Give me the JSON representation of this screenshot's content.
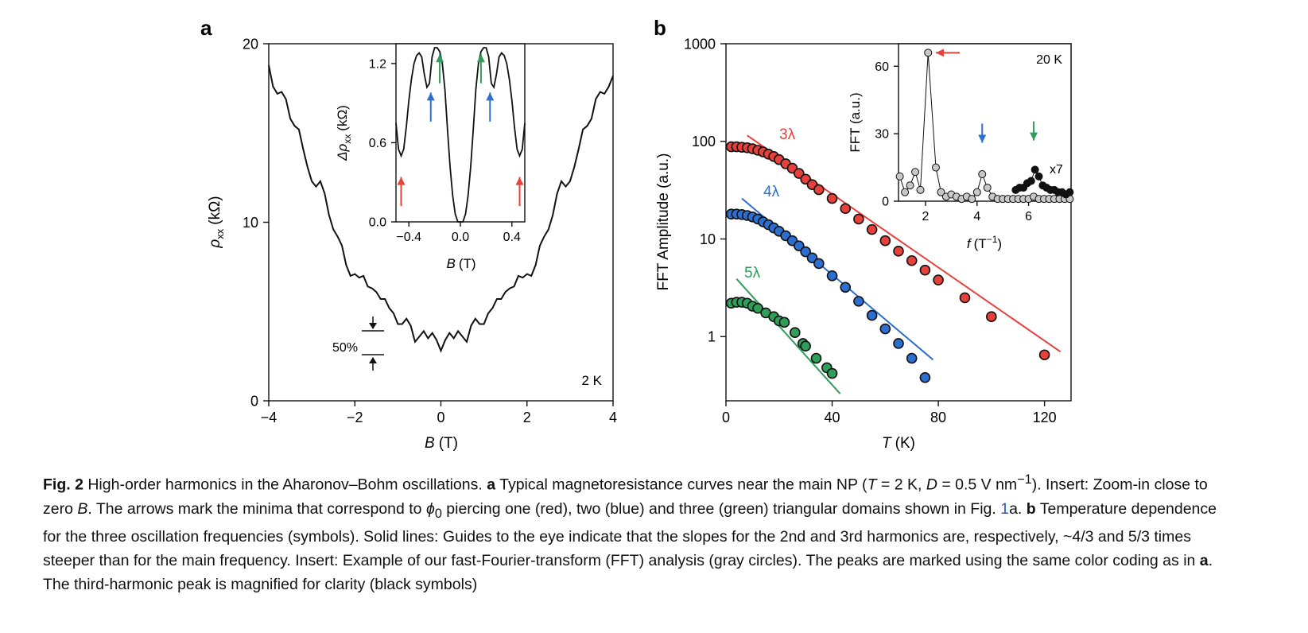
{
  "figure": {
    "panel_a_letter": "a",
    "panel_b_letter": "b"
  },
  "caption": {
    "fig_label": "Fig. 2",
    "s1": " High-order harmonics in the Aharonov–Bohm oscillations. ",
    "s2": "a",
    "s3": " Typical magnetoresistance curves near the main NP (",
    "s4": "T",
    "s5": " = 2 K, ",
    "s6": "D",
    "s7": " = 0.5 V nm",
    "s8": "−1",
    "s9": "). Insert: Zoom-in close to zero ",
    "s10": "B",
    "s11": ". The arrows mark the minima that correspond to ",
    "s12": "ϕ",
    "s13": "0",
    "s14": " piercing one (red), two (blue) and three (green) triangular domains shown in Fig. ",
    "s15": "1",
    "s16": "a. ",
    "s17": "b",
    "s18": " Temperature dependence for the three oscillation frequencies (symbols). Solid lines: Guides to the eye indicate that the slopes for the 2nd and 3rd harmonics are, respectively, ~4/3 and 5/3 times steeper than for the main frequency. Insert: Example of our fast-Fourier-transform (FFT) analysis (gray circles). The peaks are marked using the same color coding as in ",
    "s19": "a",
    "s20": ". The third-harmonic peak is magnified for clarity (black symbols)"
  },
  "colors": {
    "red": "#e8413c",
    "blue": "#2d6fd0",
    "green": "#2e9e58",
    "gray": "#c8c8c8",
    "black": "#111111"
  },
  "chart_data": [
    {
      "id": "panel_a",
      "type": "line",
      "xlabel_sym": "B",
      "xlabel_unit": "(T)",
      "ylabel_sym": "ρ",
      "ylabel_sub": "xx",
      "ylabel_unit": "(kΩ)",
      "xlim": [
        -4,
        4
      ],
      "ylim": [
        0,
        20
      ],
      "xticks": [
        "−4",
        "−2",
        "0",
        "2",
        "4"
      ],
      "yticks": [
        "0",
        "10",
        "20"
      ],
      "annotation_temp": "2 K",
      "scale_bar_label": "50%",
      "series": [
        {
          "x": [
            -4.0,
            -3.9,
            -3.8,
            -3.7,
            -3.6,
            -3.5,
            -3.4,
            -3.3,
            -3.2,
            -3.1,
            -3.0,
            -2.9,
            -2.8,
            -2.7,
            -2.6,
            -2.5,
            -2.4,
            -2.3,
            -2.2,
            -2.1,
            -2.0,
            -1.9,
            -1.8,
            -1.7,
            -1.6,
            -1.5,
            -1.4,
            -1.3,
            -1.2,
            -1.1,
            -1.0,
            -0.9,
            -0.8,
            -0.7,
            -0.6,
            -0.5,
            -0.4,
            -0.3,
            -0.2,
            -0.1,
            0.0,
            0.1,
            0.2,
            0.3,
            0.4,
            0.5,
            0.6,
            0.7,
            0.8,
            0.9,
            1.0,
            1.1,
            1.2,
            1.3,
            1.4,
            1.5,
            1.6,
            1.7,
            1.8,
            1.9,
            2.0,
            2.1,
            2.2,
            2.3,
            2.4,
            2.5,
            2.6,
            2.7,
            2.8,
            2.9,
            3.0,
            3.1,
            3.2,
            3.3,
            3.4,
            3.5,
            3.6,
            3.7,
            3.8,
            3.9,
            4.0
          ],
          "y": [
            18.8,
            17.6,
            17.2,
            17.3,
            16.9,
            15.8,
            15.4,
            15.2,
            14.1,
            13.1,
            12.3,
            12.0,
            12.3,
            11.6,
            10.4,
            9.6,
            9.2,
            8.7,
            7.6,
            7.0,
            7.1,
            6.9,
            7.0,
            6.4,
            6.3,
            6.1,
            5.7,
            5.7,
            5.2,
            4.9,
            4.3,
            4.3,
            4.6,
            4.2,
            3.3,
            3.6,
            3.9,
            3.5,
            3.8,
            3.4,
            2.8,
            3.4,
            3.8,
            3.5,
            3.9,
            3.6,
            3.3,
            4.2,
            4.6,
            4.3,
            4.3,
            4.9,
            5.2,
            5.7,
            5.7,
            6.1,
            6.3,
            6.4,
            7.0,
            6.9,
            7.1,
            7.0,
            7.6,
            8.7,
            9.2,
            9.6,
            10.4,
            11.6,
            12.3,
            12.0,
            12.3,
            13.1,
            14.1,
            15.2,
            15.4,
            15.8,
            16.9,
            17.3,
            17.2,
            17.6,
            18.2
          ]
        }
      ]
    },
    {
      "id": "panel_a_inset",
      "type": "line",
      "xlabel_sym": "B",
      "xlabel_unit": "(T)",
      "ylabel_sym": "Δρ",
      "ylabel_sub": "xx",
      "ylabel_unit": "(kΩ)",
      "xlim": [
        -0.5,
        0.5
      ],
      "ylim": [
        0,
        1.35
      ],
      "xticks": [
        "−0.4",
        "0.0",
        "0.4"
      ],
      "yticks": [
        "0.0",
        "0.6",
        "1.2"
      ],
      "series": [
        {
          "x": [
            -0.5,
            -0.48,
            -0.46,
            -0.44,
            -0.42,
            -0.4,
            -0.38,
            -0.36,
            -0.34,
            -0.32,
            -0.3,
            -0.28,
            -0.26,
            -0.24,
            -0.22,
            -0.2,
            -0.18,
            -0.16,
            -0.14,
            -0.12,
            -0.1,
            -0.08,
            -0.06,
            -0.04,
            -0.02,
            0.0,
            0.02,
            0.04,
            0.06,
            0.08,
            0.1,
            0.12,
            0.14,
            0.16,
            0.18,
            0.2,
            0.22,
            0.24,
            0.26,
            0.28,
            0.3,
            0.32,
            0.34,
            0.36,
            0.38,
            0.4,
            0.42,
            0.44,
            0.46,
            0.48,
            0.5
          ],
          "y": [
            0.75,
            0.55,
            0.5,
            0.55,
            0.72,
            0.92,
            1.08,
            1.2,
            1.26,
            1.28,
            1.25,
            1.12,
            1.02,
            1.05,
            1.25,
            1.32,
            1.32,
            1.29,
            1.2,
            1.0,
            0.7,
            0.42,
            0.2,
            0.06,
            0.0,
            0.0,
            0.0,
            0.06,
            0.2,
            0.42,
            0.7,
            1.0,
            1.2,
            1.29,
            1.32,
            1.32,
            1.25,
            1.05,
            1.02,
            1.12,
            1.25,
            1.28,
            1.26,
            1.2,
            1.08,
            0.92,
            0.72,
            0.55,
            0.5,
            0.55,
            0.75
          ]
        }
      ],
      "arrows": [
        {
          "color": "red",
          "x": -0.46,
          "y0": 0.12,
          "y1": 0.34,
          "direction": "up"
        },
        {
          "color": "blue",
          "x": -0.23,
          "y0": 0.76,
          "y1": 0.98,
          "direction": "up"
        },
        {
          "color": "green",
          "x": -0.16,
          "y0": 1.05,
          "y1": 1.27,
          "direction": "up"
        },
        {
          "color": "green",
          "x": 0.16,
          "y0": 1.05,
          "y1": 1.27,
          "direction": "up"
        },
        {
          "color": "blue",
          "x": 0.23,
          "y0": 0.76,
          "y1": 0.98,
          "direction": "up"
        },
        {
          "color": "red",
          "x": 0.46,
          "y0": 0.12,
          "y1": 0.34,
          "direction": "up"
        }
      ]
    },
    {
      "id": "panel_b",
      "type": "scatter",
      "log_y": true,
      "xlabel_sym": "T",
      "xlabel_unit": "(K)",
      "ylabel": "FFT Amplitude (a.u.)",
      "xlim": [
        0,
        130
      ],
      "ylim": [
        0.22,
        1000
      ],
      "xticks": [
        "0",
        "40",
        "80",
        "120"
      ],
      "yticks": [
        "1",
        "10",
        "100",
        "1000"
      ],
      "series": [
        {
          "name": "3λ",
          "color": "red",
          "x": [
            2,
            4,
            6,
            8,
            10,
            12,
            14,
            16,
            18,
            20,
            22.5,
            25,
            27.5,
            30,
            32.5,
            35,
            40,
            45,
            50,
            55,
            60,
            65,
            70,
            75,
            80,
            90,
            100,
            120
          ],
          "y": [
            88,
            88,
            87,
            86,
            84,
            81,
            78,
            74,
            70,
            65,
            59,
            53,
            47,
            41,
            36,
            32,
            26,
            20.5,
            16,
            12.5,
            9.6,
            7.5,
            6.0,
            4.8,
            3.8,
            2.5,
            1.6,
            0.65
          ]
        },
        {
          "name": "4λ",
          "color": "blue",
          "x": [
            2,
            4,
            6,
            8,
            10,
            12,
            14,
            16,
            18,
            20,
            22.5,
            25,
            27.5,
            30,
            32.5,
            35,
            40,
            45,
            50,
            55,
            60,
            65,
            70,
            75
          ],
          "y": [
            18,
            18,
            17.8,
            17.4,
            16.8,
            16,
            15,
            14,
            13,
            12,
            10.8,
            9.6,
            8.5,
            7.4,
            6.4,
            5.6,
            4.2,
            3.2,
            2.3,
            1.65,
            1.2,
            0.85,
            0.6,
            0.38
          ]
        },
        {
          "name": "5λ",
          "color": "green",
          "x": [
            2,
            4,
            6,
            8,
            10,
            12,
            15,
            18,
            20,
            22,
            26,
            29,
            30,
            34,
            38,
            40
          ],
          "y": [
            2.2,
            2.25,
            2.25,
            2.2,
            2.05,
            1.95,
            1.75,
            1.6,
            1.45,
            1.4,
            1.1,
            0.85,
            0.8,
            0.6,
            0.48,
            0.42
          ]
        }
      ],
      "fit_lines": [
        {
          "color": "red",
          "x": [
            8,
            126
          ],
          "y": [
            115,
            0.7
          ]
        },
        {
          "color": "blue",
          "x": [
            6,
            78
          ],
          "y": [
            26,
            0.58
          ]
        },
        {
          "color": "green",
          "x": [
            4,
            43
          ],
          "y": [
            3.9,
            0.26
          ]
        }
      ]
    },
    {
      "id": "panel_b_inset",
      "type": "scatter",
      "xlabel_sym": "f",
      "xlabel_unit": "(T",
      "xlabel_sup": "−1",
      "xlabel_close": ")",
      "ylabel": "FFT (a.u.)",
      "xlim": [
        0.95,
        7.65
      ],
      "ylim": [
        0,
        70
      ],
      "xticks": [
        "2",
        "4",
        "6"
      ],
      "yticks": [
        "0",
        "30",
        "60"
      ],
      "annotation_temp": "20 K",
      "magnification_label": "x7",
      "series": [
        {
          "name": "fft",
          "color": "gray",
          "x": [
            1.0,
            1.2,
            1.4,
            1.6,
            1.8,
            2.1,
            2.4,
            2.6,
            2.8,
            3.0,
            3.2,
            3.4,
            3.6,
            3.8,
            4.0,
            4.2,
            4.4,
            4.6,
            4.8,
            5.0,
            5.2,
            5.4,
            5.6,
            5.8,
            6.0,
            6.2,
            6.4,
            6.6,
            6.8,
            7.0,
            7.2,
            7.4,
            7.6
          ],
          "y": [
            11,
            4,
            7,
            13,
            5,
            66,
            15,
            4,
            2,
            3,
            2,
            1,
            2,
            1,
            4,
            12,
            6,
            2,
            1,
            1,
            1,
            1,
            1,
            1,
            1,
            2,
            1,
            1,
            1,
            1,
            1,
            1,
            1
          ]
        },
        {
          "name": "x7",
          "color": "black",
          "x": [
            5.5,
            5.65,
            5.8,
            5.95,
            6.1,
            6.25,
            6.4,
            6.55,
            6.7,
            6.85,
            7.0,
            7.15,
            7.3,
            7.45,
            7.6
          ],
          "y": [
            5,
            6,
            6,
            8,
            9,
            14,
            11,
            7,
            6,
            5,
            5,
            4,
            4,
            3,
            4
          ]
        }
      ],
      "arrows": [
        {
          "color": "red",
          "x": 2.4,
          "y": 66,
          "direction": "left"
        },
        {
          "color": "blue",
          "x": 4.2,
          "y": 26,
          "direction": "down"
        },
        {
          "color": "green",
          "x": 6.2,
          "y": 27,
          "direction": "down"
        }
      ]
    }
  ]
}
